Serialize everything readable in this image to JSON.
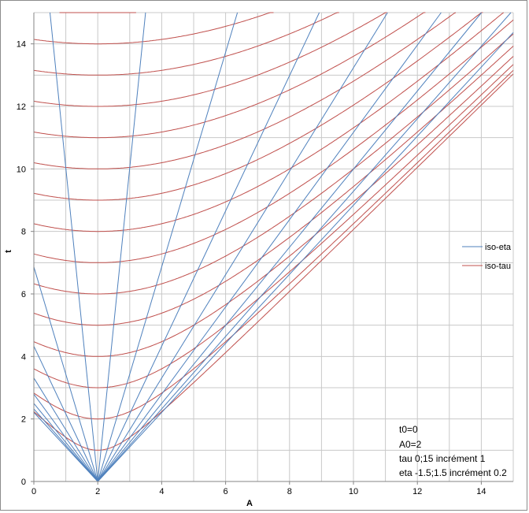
{
  "chart_data": {
    "type": "line",
    "title": "",
    "xlabel": "A",
    "ylabel": "t",
    "xlim": [
      0,
      15
    ],
    "ylim": [
      0,
      15
    ],
    "x_ticks": [
      "0",
      "2",
      "4",
      "6",
      "8",
      "10",
      "12",
      "14"
    ],
    "y_ticks": [
      "0",
      "2",
      "4",
      "6",
      "8",
      "10",
      "12",
      "14"
    ],
    "grid": true,
    "legend_position": "right",
    "parameters": {
      "t0": 0,
      "A0": 2
    },
    "series": [
      {
        "name": "iso-eta",
        "color": "#4f81bd",
        "family": "lines through (A0, t0) with slope 1/tanh(eta)",
        "eta_values": [
          -1.5,
          -1.3,
          -1.1,
          -0.9,
          -0.7,
          -0.5,
          -0.3,
          -0.1,
          0.1,
          0.3,
          0.5,
          0.7,
          0.9,
          1.1,
          1.3,
          1.5
        ]
      },
      {
        "name": "iso-tau",
        "color": "#c0504d",
        "family": "hyperbolas (t - t0)^2 - (A - A0)^2 = tau^2",
        "tau_values": [
          0,
          1,
          2,
          3,
          4,
          5,
          6,
          7,
          8,
          9,
          10,
          11,
          12,
          13,
          14,
          15
        ]
      }
    ],
    "annotations": [
      "t0=0",
      "A0=2",
      "tau 0;15 incrément 1",
      "eta -1.5;1.5 incrément 0.2"
    ]
  }
}
